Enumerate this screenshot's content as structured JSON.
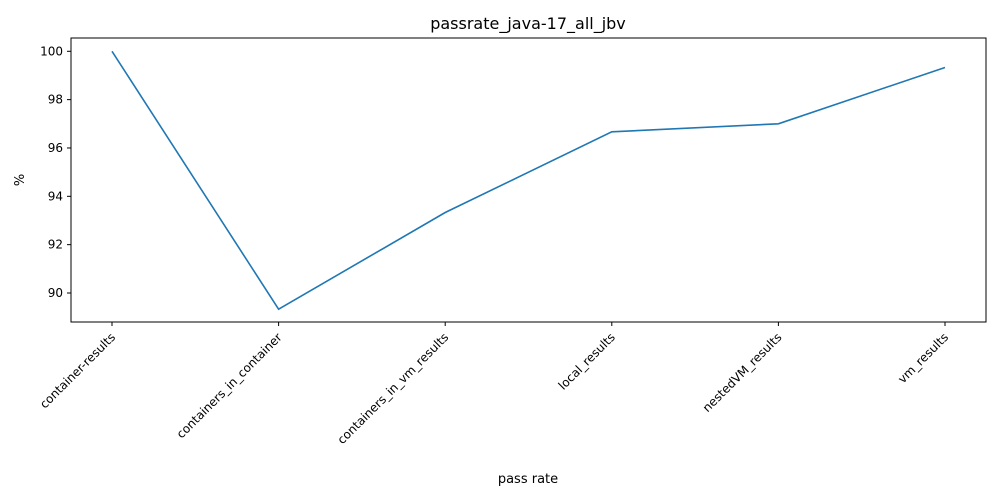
{
  "chart_data": {
    "type": "line",
    "title": "passrate_java-17_all_jbv",
    "xlabel": "pass rate",
    "ylabel": "%",
    "categories": [
      "container-results",
      "containers_in_container",
      "containers_in_vm_results",
      "local_results",
      "nestedVM_results",
      "vm_results"
    ],
    "series": [
      {
        "values": [
          100.0,
          89.33,
          93.33,
          96.67,
          97.0,
          99.33
        ],
        "color": "#1f77b4"
      }
    ],
    "ylim": [
      88.8,
      100.55
    ],
    "yticks": [
      90,
      92,
      94,
      96,
      98,
      100
    ],
    "grid": false,
    "legend": "none"
  }
}
